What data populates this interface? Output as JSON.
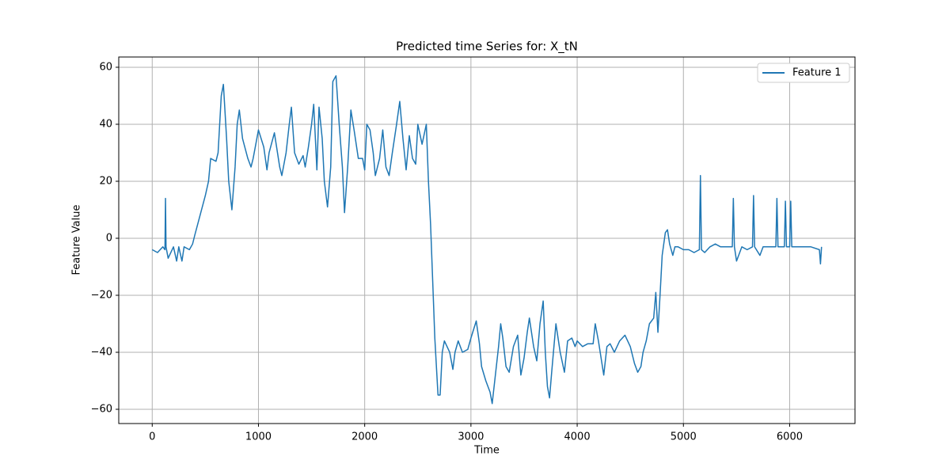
{
  "chart_data": {
    "type": "line",
    "title": "Predicted time Series for: X_tN",
    "x_label": "Time",
    "y_label": "Feature Value",
    "x": [
      0,
      50,
      100,
      120,
      125,
      130,
      150,
      200,
      230,
      250,
      280,
      300,
      350,
      380,
      400,
      450,
      500,
      530,
      550,
      600,
      620,
      650,
      670,
      700,
      720,
      750,
      780,
      800,
      820,
      850,
      900,
      930,
      950,
      1000,
      1050,
      1080,
      1100,
      1150,
      1200,
      1220,
      1260,
      1290,
      1310,
      1340,
      1380,
      1420,
      1440,
      1470,
      1500,
      1520,
      1550,
      1570,
      1600,
      1620,
      1650,
      1680,
      1700,
      1730,
      1760,
      1790,
      1810,
      1840,
      1870,
      1900,
      1940,
      1980,
      2000,
      2020,
      2050,
      2080,
      2100,
      2140,
      2170,
      2200,
      2230,
      2260,
      2300,
      2330,
      2360,
      2390,
      2420,
      2450,
      2480,
      2500,
      2540,
      2580,
      2600,
      2620,
      2640,
      2660,
      2690,
      2710,
      2730,
      2750,
      2800,
      2830,
      2850,
      2880,
      2920,
      2970,
      3000,
      3050,
      3080,
      3100,
      3140,
      3180,
      3200,
      3230,
      3260,
      3280,
      3300,
      3330,
      3360,
      3400,
      3440,
      3470,
      3500,
      3530,
      3550,
      3590,
      3620,
      3650,
      3680,
      3700,
      3720,
      3740,
      3760,
      3800,
      3840,
      3880,
      3910,
      3950,
      3980,
      4000,
      4050,
      4100,
      4150,
      4170,
      4200,
      4250,
      4280,
      4310,
      4350,
      4400,
      4450,
      4500,
      4540,
      4570,
      4600,
      4620,
      4650,
      4680,
      4720,
      4740,
      4760,
      4780,
      4800,
      4830,
      4850,
      4870,
      4900,
      4920,
      4950,
      5000,
      5050,
      5100,
      5150,
      5160,
      5170,
      5200,
      5250,
      5300,
      5350,
      5400,
      5460,
      5470,
      5480,
      5500,
      5550,
      5600,
      5650,
      5660,
      5670,
      5720,
      5750,
      5800,
      5870,
      5880,
      5890,
      5950,
      5960,
      5970,
      6000,
      6010,
      6020,
      6100,
      6200,
      6280,
      6290,
      6300
    ],
    "series": [
      {
        "name": "Feature 1",
        "color": "#1f77b4",
        "values": [
          -4,
          -5,
          -3,
          -4,
          14,
          -3,
          -7,
          -3,
          -8,
          -3,
          -8,
          -3,
          -4,
          -2,
          1,
          8,
          15,
          20,
          28,
          27,
          30,
          50,
          54,
          35,
          20,
          10,
          25,
          40,
          45,
          35,
          28,
          25,
          28,
          38,
          32,
          24,
          30,
          37,
          25,
          22,
          30,
          40,
          46,
          30,
          26,
          29,
          25,
          32,
          40,
          47,
          24,
          46,
          35,
          20,
          11,
          25,
          55,
          57,
          40,
          25,
          9,
          25,
          45,
          38,
          28,
          28,
          24,
          40,
          38,
          30,
          22,
          28,
          38,
          25,
          22,
          30,
          40,
          48,
          35,
          24,
          36,
          28,
          26,
          40,
          33,
          40,
          20,
          5,
          -15,
          -35,
          -55,
          -55,
          -40,
          -36,
          -40,
          -46,
          -40,
          -36,
          -40,
          -39,
          -35,
          -29,
          -37,
          -45,
          -50,
          -54,
          -58,
          -48,
          -38,
          -30,
          -35,
          -45,
          -47,
          -38,
          -34,
          -48,
          -42,
          -33,
          -28,
          -38,
          -43,
          -30,
          -22,
          -40,
          -52,
          -56,
          -47,
          -30,
          -40,
          -47,
          -36,
          -35,
          -38,
          -36,
          -38,
          -37,
          -37,
          -30,
          -36,
          -48,
          -38,
          -37,
          -40,
          -36,
          -34,
          -38,
          -44,
          -47,
          -45,
          -40,
          -36,
          -30,
          -28,
          -19,
          -33,
          -20,
          -6,
          2,
          3,
          -2,
          -6,
          -3,
          -3,
          -4,
          -4,
          -5,
          -4,
          22,
          -4,
          -5,
          -3,
          -2,
          -3,
          -3,
          -3,
          14,
          -3,
          -8,
          -3,
          -4,
          -3,
          15,
          -3,
          -6,
          -3,
          -3,
          -3,
          14,
          -3,
          -3,
          13,
          -3,
          -3,
          13,
          -3,
          -3,
          -3,
          -4,
          -9,
          -3
        ]
      }
    ],
    "xlim": [
      -315,
      6615
    ],
    "ylim": [
      -65,
      63.6
    ],
    "xticks": [
      0,
      1000,
      2000,
      3000,
      4000,
      5000,
      6000
    ],
    "yticks": [
      {
        "value": -60,
        "label": "−60"
      },
      {
        "value": -40,
        "label": "−40"
      },
      {
        "value": -20,
        "label": "−20"
      },
      0,
      20,
      40,
      60
    ],
    "grid": true,
    "legend": "upper right"
  }
}
